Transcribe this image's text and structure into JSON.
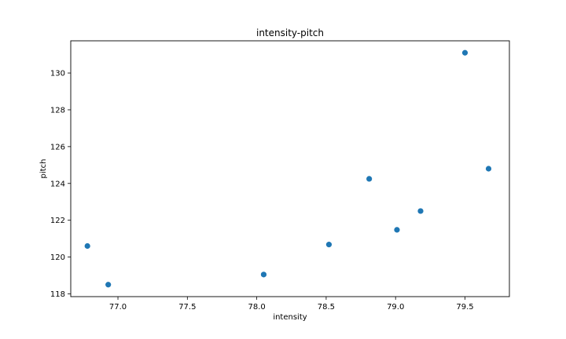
{
  "chart_data": {
    "type": "scatter",
    "title": "intensity-pitch",
    "xlabel": "intensity",
    "ylabel": "pitch",
    "xlim": [
      76.66,
      79.82
    ],
    "ylim": [
      117.85,
      131.75
    ],
    "xticks": [
      77.0,
      77.5,
      78.0,
      78.5,
      79.0,
      79.5
    ],
    "xtick_labels": [
      "77.0",
      "77.5",
      "78.0",
      "78.5",
      "79.0",
      "79.5"
    ],
    "yticks": [
      118,
      120,
      122,
      124,
      126,
      128,
      130
    ],
    "ytick_labels": [
      "118",
      "120",
      "122",
      "124",
      "126",
      "128",
      "130"
    ],
    "grid": false,
    "color": "#1f77b4",
    "series": [
      {
        "name": "intensity-pitch",
        "x": [
          76.78,
          76.93,
          78.05,
          78.52,
          78.81,
          79.01,
          79.18,
          79.5,
          79.67
        ],
        "y": [
          120.6,
          118.5,
          119.05,
          120.68,
          124.25,
          121.48,
          122.5,
          131.1,
          124.8
        ]
      }
    ]
  }
}
